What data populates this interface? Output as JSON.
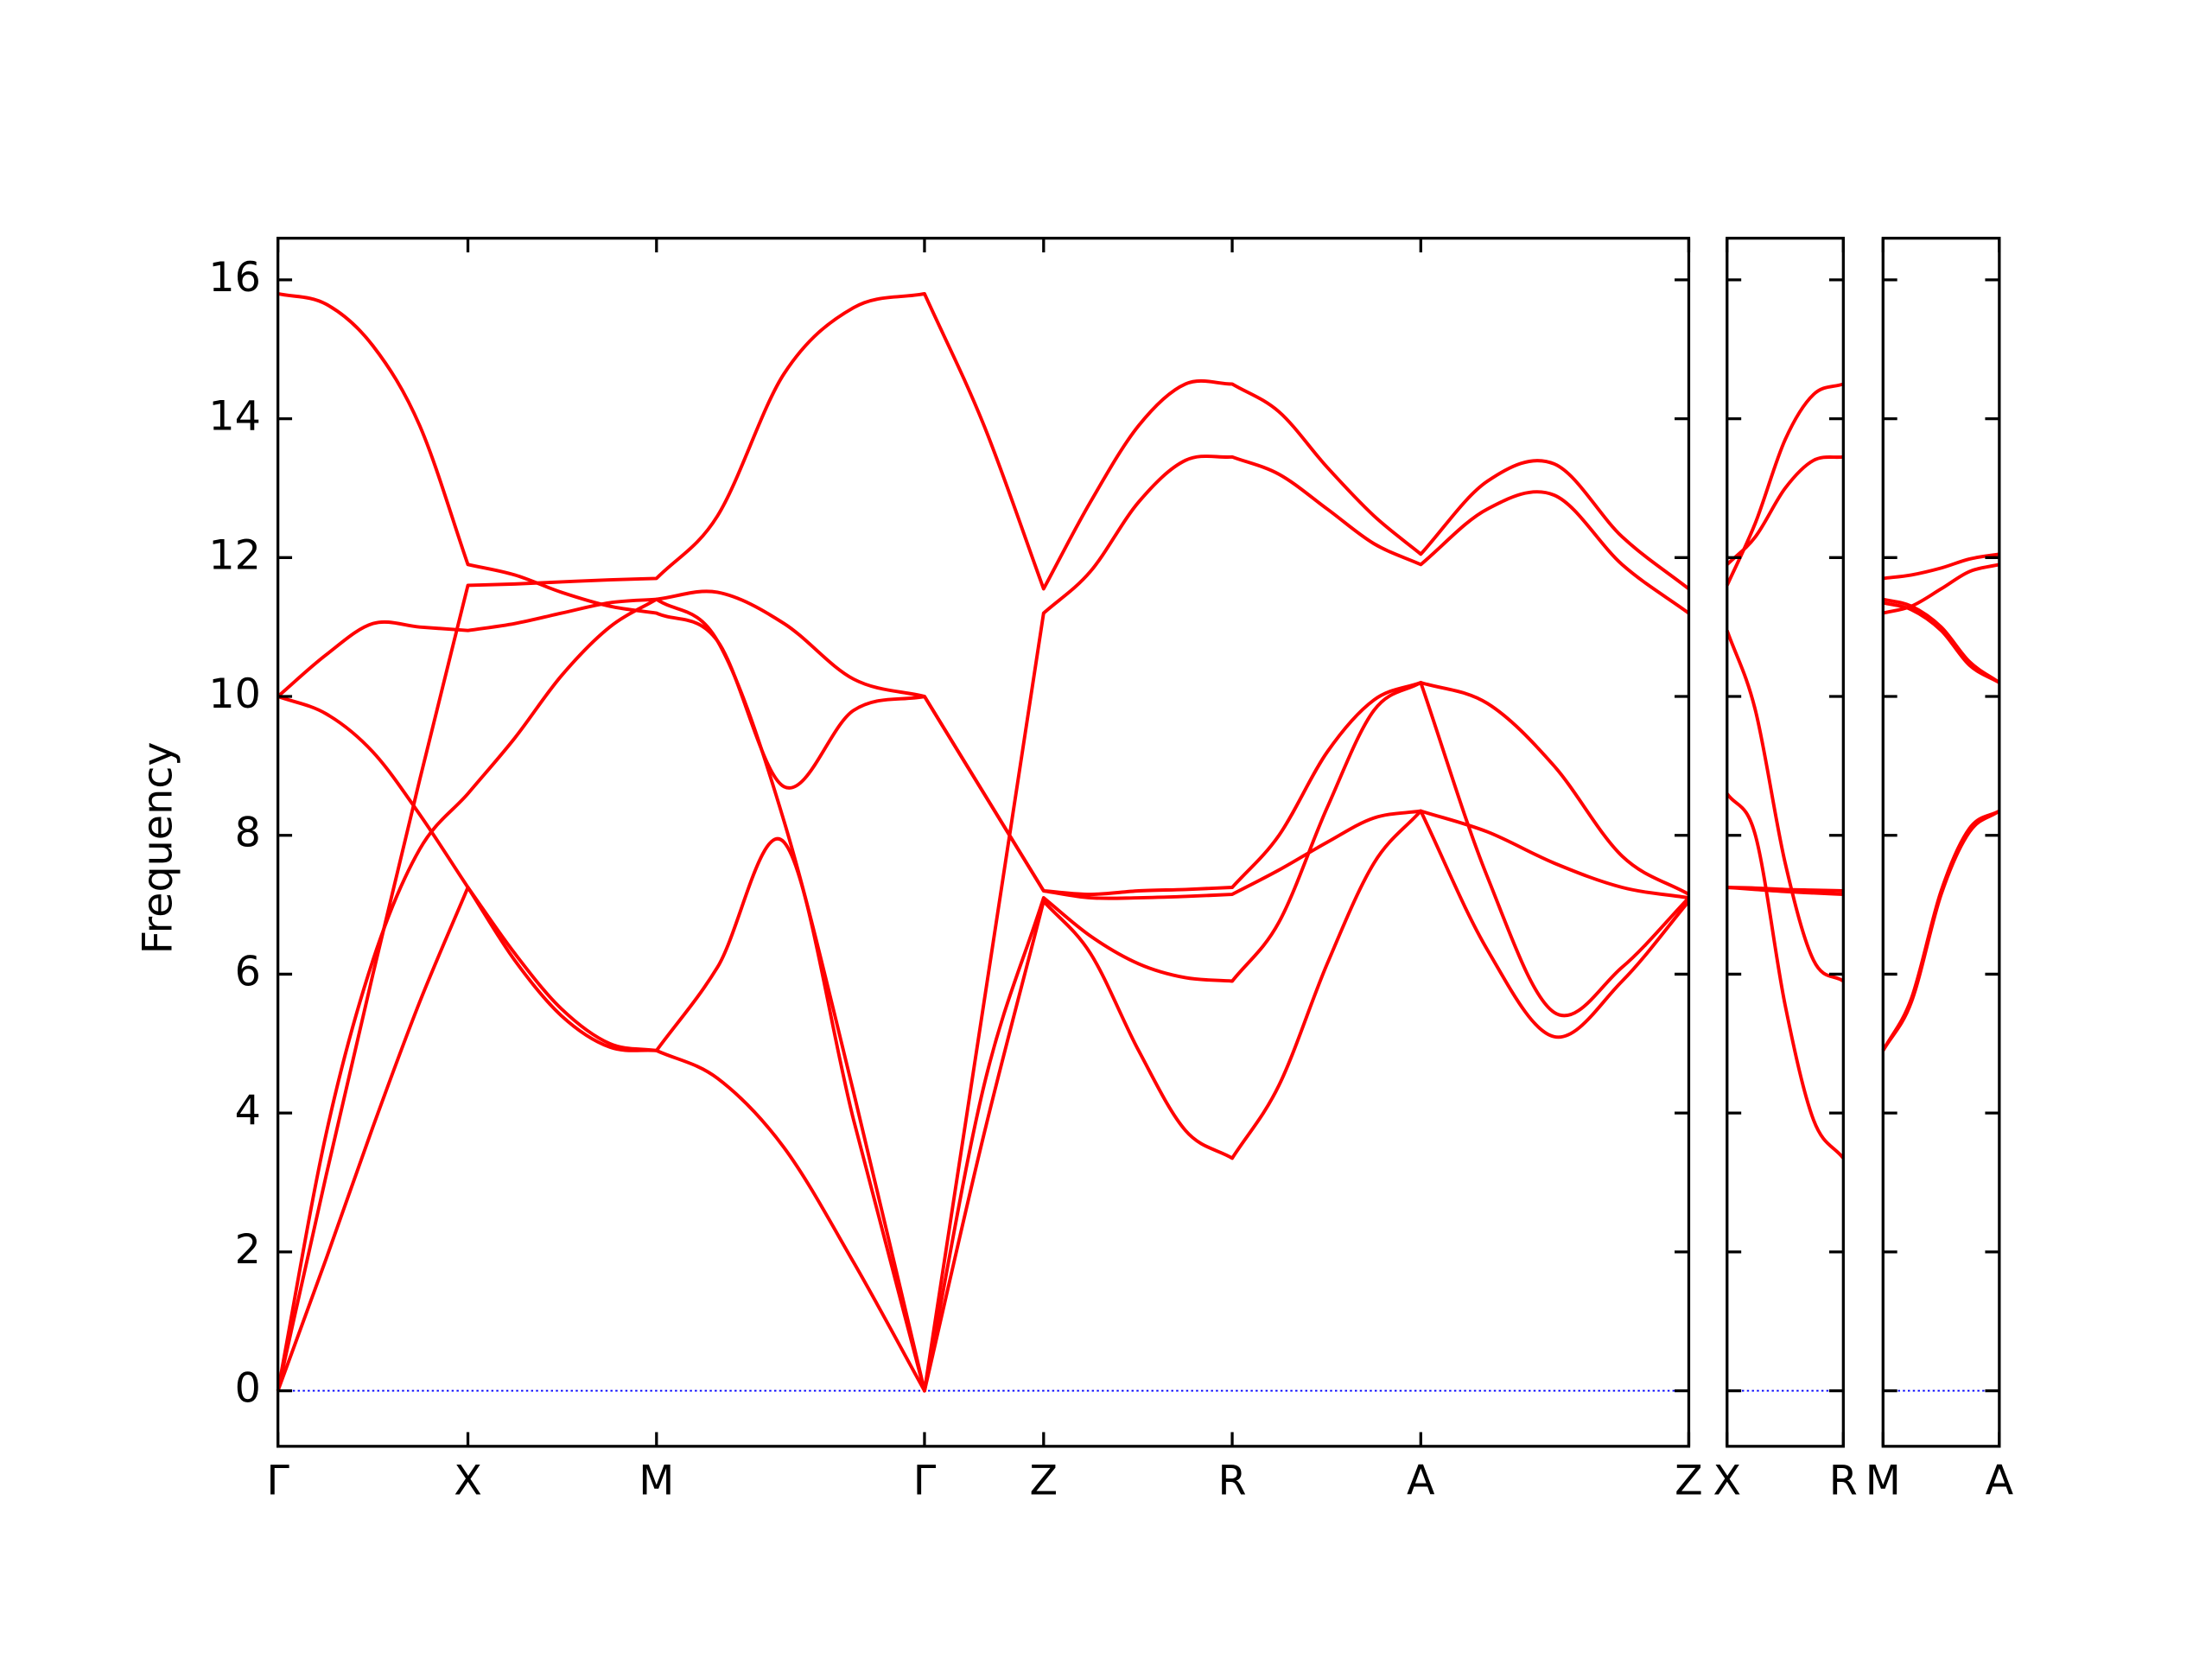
{
  "chart_data": [
    {
      "type": "line",
      "ylabel": "Frequency",
      "ylim": [
        -0.8,
        16.6
      ],
      "yticks": [
        0,
        2,
        4,
        6,
        8,
        10,
        12,
        14,
        16
      ],
      "hline": 0,
      "hline_color": "#0000ff",
      "xlim": [
        0,
        9.95
      ],
      "xticks": [
        {
          "value": 0,
          "label": "Γ"
        },
        {
          "value": 1.34,
          "label": "X"
        },
        {
          "value": 2.67,
          "label": "M"
        },
        {
          "value": 4.56,
          "label": "Γ"
        },
        {
          "value": 5.4,
          "label": "Z"
        },
        {
          "value": 6.73,
          "label": "R"
        },
        {
          "value": 8.06,
          "label": "A"
        },
        {
          "value": 9.95,
          "label": "Z"
        }
      ],
      "x": [
        0,
        0.34,
        0.67,
        1.0,
        1.34,
        1.67,
        2.0,
        2.34,
        2.67,
        3.1,
        3.57,
        4.06,
        4.56,
        4.98,
        5.4,
        5.73,
        6.07,
        6.4,
        6.73,
        7.06,
        7.4,
        7.73,
        8.06,
        8.53,
        9.0,
        9.48,
        9.95
      ],
      "series": [
        {
          "color": "#ff0000",
          "values": [
            15.8,
            15.65,
            15.05,
            13.9,
            11.9,
            11.75,
            11.5,
            11.3,
            11.2,
            10.8,
            8.7,
            9.8,
            10.0,
            8.6,
            7.2,
            7.15,
            7.2,
            7.22,
            7.25,
            8.0,
            9.2,
            9.95,
            10.2,
            9.9,
            9.0,
            7.7,
            7.15
          ]
        },
        {
          "color": "#ff0000",
          "values": [
            10.0,
            10.6,
            11.05,
            11.0,
            10.95,
            11.05,
            11.2,
            11.35,
            11.4,
            11.5,
            11.05,
            10.25,
            10.0,
            8.6,
            7.2,
            7.1,
            7.1,
            7.12,
            7.15,
            7.5,
            7.9,
            8.25,
            8.35,
            8.05,
            7.6,
            7.25,
            7.1
          ]
        },
        {
          "color": "#ff0000",
          "values": [
            10.0,
            9.75,
            9.2,
            8.3,
            7.25,
            6.3,
            5.5,
            5.0,
            4.9,
            6.1,
            7.9,
            3.9,
            0,
            4.4,
            7.1,
            6.55,
            6.15,
            5.95,
            5.9,
            6.75,
            8.4,
            9.8,
            10.2,
            7.4,
            5.45,
            6.1,
            7.1
          ]
        },
        {
          "color": "#ff0000",
          "values": [
            0,
            3.1,
            6.0,
            8.8,
            11.6,
            11.62,
            11.65,
            11.68,
            11.7,
            12.6,
            14.65,
            15.6,
            15.8,
            13.9,
            11.55,
            12.8,
            13.9,
            14.5,
            14.5,
            14.1,
            13.3,
            12.6,
            12.05,
            13.1,
            13.35,
            12.3,
            11.55
          ]
        },
        {
          "color": "#ff0000",
          "values": [
            0,
            3.7,
            6.2,
            7.8,
            8.6,
            9.4,
            10.3,
            11.0,
            11.4,
            10.8,
            8.2,
            4.3,
            0,
            5.6,
            11.2,
            11.8,
            12.8,
            13.4,
            13.45,
            13.2,
            12.7,
            12.2,
            11.9,
            12.7,
            12.9,
            11.9,
            11.2
          ]
        },
        {
          "color": "#ff0000",
          "values": [
            0,
            1.9,
            3.8,
            5.6,
            7.25,
            6.2,
            5.4,
            4.95,
            4.9,
            4.5,
            3.5,
            1.85,
            0,
            3.7,
            7.05,
            6.3,
            4.9,
            3.75,
            3.35,
            4.4,
            6.15,
            7.6,
            8.35,
            6.35,
            5.1,
            5.9,
            7.05
          ]
        }
      ]
    },
    {
      "type": "line",
      "xlim": [
        0,
        0.82
      ],
      "xticks": [
        {
          "value": 0,
          "label": "X"
        },
        {
          "value": 0.82,
          "label": "R"
        }
      ],
      "x": [
        0,
        0.2,
        0.41,
        0.61,
        0.82
      ],
      "series": [
        {
          "color": "#ff0000",
          "values": [
            11.9,
            12.3,
            13.0,
            13.4,
            13.45
          ]
        },
        {
          "color": "#ff0000",
          "values": [
            10.95,
            9.8,
            7.6,
            6.2,
            5.9
          ]
        },
        {
          "color": "#ff0000",
          "values": [
            7.25,
            7.24,
            7.22,
            7.21,
            7.2
          ]
        },
        {
          "color": "#ff0000",
          "values": [
            11.6,
            12.5,
            13.7,
            14.35,
            14.5
          ]
        },
        {
          "color": "#ff0000",
          "values": [
            8.6,
            8.0,
            5.55,
            3.9,
            3.35
          ]
        },
        {
          "color": "#ff0000",
          "values": [
            7.25,
            7.22,
            7.19,
            7.17,
            7.15
          ]
        }
      ]
    },
    {
      "type": "line",
      "xlim": [
        0,
        0.82
      ],
      "xticks": [
        {
          "value": 0,
          "label": "M"
        },
        {
          "value": 0.82,
          "label": "A"
        }
      ],
      "x": [
        0,
        0.2,
        0.41,
        0.61,
        0.82
      ],
      "series": [
        {
          "color": "#ff0000",
          "values": [
            11.2,
            11.3,
            11.55,
            11.8,
            11.9
          ]
        },
        {
          "color": "#ff0000",
          "values": [
            11.4,
            11.3,
            11.0,
            10.5,
            10.2
          ]
        },
        {
          "color": "#ff0000",
          "values": [
            4.9,
            5.65,
            7.2,
            8.1,
            8.35
          ]
        },
        {
          "color": "#ff0000",
          "values": [
            11.7,
            11.75,
            11.85,
            11.98,
            12.05
          ]
        },
        {
          "color": "#ff0000",
          "values": [
            11.35,
            11.25,
            10.95,
            10.45,
            10.2
          ]
        },
        {
          "color": "#ff0000",
          "values": [
            4.9,
            5.6,
            7.15,
            8.05,
            8.35
          ]
        }
      ]
    }
  ]
}
